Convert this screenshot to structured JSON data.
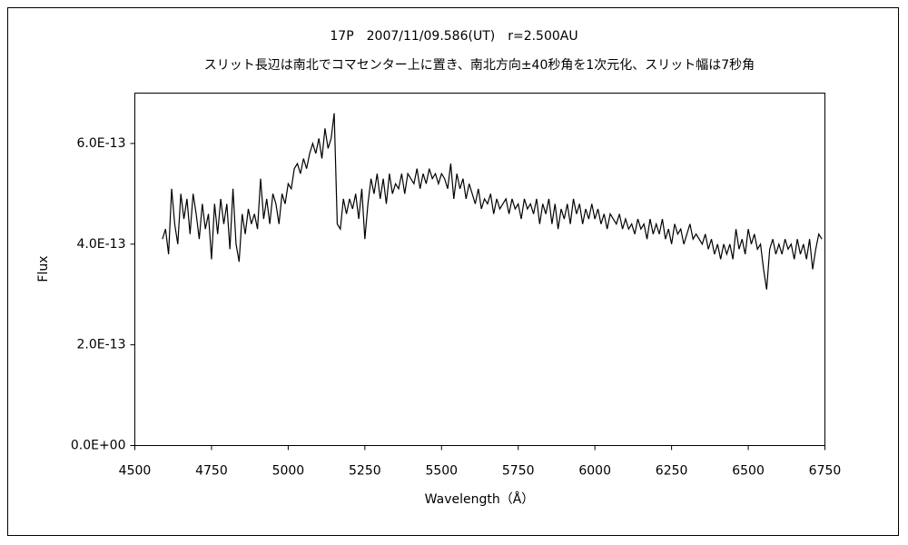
{
  "chart_data": {
    "type": "line",
    "title": "17P　2007/11/09.586(UT)　r=2.500AU",
    "subtitle": "スリット長辺は南北でコマセンター上に置き、南北方向±40秒角を1次元化、スリット幅は7秒角",
    "xlabel": "Wavelength（Å）",
    "ylabel": "Flux",
    "color": "#000000",
    "xlim": [
      4500,
      6750
    ],
    "xticks": [
      4500,
      4750,
      5000,
      5250,
      5500,
      5750,
      6000,
      6250,
      6500,
      6750
    ],
    "ylim": [
      0,
      7e-13
    ],
    "yticks": [
      {
        "value": 0,
        "label": "0.0E+00"
      },
      {
        "value": 2e-13,
        "label": "2.0E-13"
      },
      {
        "value": 4e-13,
        "label": "4.0E-13"
      },
      {
        "value": 6e-13,
        "label": "6.0E-13"
      }
    ],
    "x": [
      4590,
      4600,
      4610,
      4620,
      4630,
      4640,
      4650,
      4660,
      4670,
      4680,
      4690,
      4700,
      4710,
      4720,
      4730,
      4740,
      4750,
      4760,
      4770,
      4780,
      4790,
      4800,
      4810,
      4820,
      4830,
      4840,
      4850,
      4860,
      4870,
      4880,
      4890,
      4900,
      4910,
      4920,
      4930,
      4940,
      4950,
      4960,
      4970,
      4980,
      4990,
      5000,
      5010,
      5020,
      5030,
      5040,
      5050,
      5060,
      5070,
      5080,
      5090,
      5100,
      5110,
      5120,
      5130,
      5140,
      5150,
      5160,
      5170,
      5180,
      5190,
      5200,
      5210,
      5220,
      5230,
      5240,
      5250,
      5260,
      5270,
      5280,
      5290,
      5300,
      5310,
      5320,
      5330,
      5340,
      5350,
      5360,
      5370,
      5380,
      5390,
      5400,
      5410,
      5420,
      5430,
      5440,
      5450,
      5460,
      5470,
      5480,
      5490,
      5500,
      5510,
      5520,
      5530,
      5540,
      5550,
      5560,
      5570,
      5580,
      5590,
      5600,
      5610,
      5620,
      5630,
      5640,
      5650,
      5660,
      5670,
      5680,
      5690,
      5700,
      5710,
      5720,
      5730,
      5740,
      5750,
      5760,
      5770,
      5780,
      5790,
      5800,
      5810,
      5820,
      5830,
      5840,
      5850,
      5860,
      5870,
      5880,
      5890,
      5900,
      5910,
      5920,
      5930,
      5940,
      5950,
      5960,
      5970,
      5980,
      5990,
      6000,
      6010,
      6020,
      6030,
      6040,
      6050,
      6060,
      6070,
      6080,
      6090,
      6100,
      6110,
      6120,
      6130,
      6140,
      6150,
      6160,
      6170,
      6180,
      6190,
      6200,
      6210,
      6220,
      6230,
      6240,
      6250,
      6260,
      6270,
      6280,
      6290,
      6300,
      6310,
      6320,
      6330,
      6340,
      6350,
      6360,
      6370,
      6380,
      6390,
      6400,
      6410,
      6420,
      6430,
      6440,
      6450,
      6460,
      6470,
      6480,
      6490,
      6500,
      6510,
      6520,
      6530,
      6540,
      6550,
      6560,
      6570,
      6580,
      6590,
      6600,
      6610,
      6620,
      6630,
      6640,
      6650,
      6660,
      6670,
      6680,
      6690,
      6700,
      6710,
      6720,
      6730,
      6740
    ],
    "values": [
      4.1e-13,
      4.3e-13,
      3.8e-13,
      5.1e-13,
      4.4e-13,
      4e-13,
      5e-13,
      4.5e-13,
      4.9e-13,
      4.2e-13,
      5e-13,
      4.6e-13,
      4.1e-13,
      4.8e-13,
      4.3e-13,
      4.6e-13,
      3.7e-13,
      4.8e-13,
      4.2e-13,
      4.9e-13,
      4.4e-13,
      4.8e-13,
      3.9e-13,
      5.1e-13,
      4e-13,
      3.65e-13,
      4.6e-13,
      4.2e-13,
      4.7e-13,
      4.4e-13,
      4.6e-13,
      4.3e-13,
      5.3e-13,
      4.5e-13,
      4.9e-13,
      4.4e-13,
      5e-13,
      4.8e-13,
      4.4e-13,
      5e-13,
      4.8e-13,
      5.2e-13,
      5.1e-13,
      5.5e-13,
      5.6e-13,
      5.4e-13,
      5.7e-13,
      5.5e-13,
      5.8e-13,
      6e-13,
      5.8e-13,
      6.1e-13,
      5.7e-13,
      6.3e-13,
      5.9e-13,
      6.1e-13,
      6.6e-13,
      4.4e-13,
      4.3e-13,
      4.9e-13,
      4.6e-13,
      4.9e-13,
      4.7e-13,
      5e-13,
      4.5e-13,
      5.1e-13,
      4.1e-13,
      4.8e-13,
      5.3e-13,
      5e-13,
      5.4e-13,
      4.9e-13,
      5.3e-13,
      4.8e-13,
      5.4e-13,
      5e-13,
      5.2e-13,
      5.1e-13,
      5.4e-13,
      5e-13,
      5.4e-13,
      5.3e-13,
      5.2e-13,
      5.5e-13,
      5.1e-13,
      5.4e-13,
      5.2e-13,
      5.5e-13,
      5.3e-13,
      5.4e-13,
      5.2e-13,
      5.4e-13,
      5.3e-13,
      5.1e-13,
      5.6e-13,
      4.9e-13,
      5.4e-13,
      5.1e-13,
      5.3e-13,
      4.9e-13,
      5.2e-13,
      5e-13,
      4.8e-13,
      5.1e-13,
      4.7e-13,
      4.9e-13,
      4.8e-13,
      5e-13,
      4.6e-13,
      4.9e-13,
      4.7e-13,
      4.8e-13,
      4.9e-13,
      4.6e-13,
      4.9e-13,
      4.7e-13,
      4.8e-13,
      4.5e-13,
      4.9e-13,
      4.7e-13,
      4.8e-13,
      4.6e-13,
      4.9e-13,
      4.4e-13,
      4.8e-13,
      4.6e-13,
      4.9e-13,
      4.4e-13,
      4.8e-13,
      4.3e-13,
      4.7e-13,
      4.5e-13,
      4.8e-13,
      4.4e-13,
      4.9e-13,
      4.6e-13,
      4.8e-13,
      4.4e-13,
      4.7e-13,
      4.5e-13,
      4.8e-13,
      4.5e-13,
      4.7e-13,
      4.4e-13,
      4.6e-13,
      4.3e-13,
      4.6e-13,
      4.5e-13,
      4.4e-13,
      4.6e-13,
      4.3e-13,
      4.5e-13,
      4.3e-13,
      4.4e-13,
      4.2e-13,
      4.5e-13,
      4.3e-13,
      4.4e-13,
      4.1e-13,
      4.5e-13,
      4.2e-13,
      4.4e-13,
      4.2e-13,
      4.5e-13,
      4.1e-13,
      4.3e-13,
      4e-13,
      4.4e-13,
      4.2e-13,
      4.3e-13,
      4e-13,
      4.2e-13,
      4.4e-13,
      4.1e-13,
      4.2e-13,
      4.1e-13,
      4e-13,
      4.2e-13,
      3.9e-13,
      4.1e-13,
      3.8e-13,
      4e-13,
      3.7e-13,
      4e-13,
      3.8e-13,
      4e-13,
      3.7e-13,
      4.3e-13,
      3.9e-13,
      4.1e-13,
      3.8e-13,
      4.3e-13,
      4e-13,
      4.2e-13,
      3.9e-13,
      4e-13,
      3.5e-13,
      3.1e-13,
      3.9e-13,
      4.1e-13,
      3.8e-13,
      4e-13,
      3.8e-13,
      4.1e-13,
      3.9e-13,
      4e-13,
      3.7e-13,
      4.1e-13,
      3.8e-13,
      4e-13,
      3.7e-13,
      4.1e-13,
      3.5e-13,
      3.9e-13,
      4.2e-13,
      4.1e-13
    ]
  }
}
